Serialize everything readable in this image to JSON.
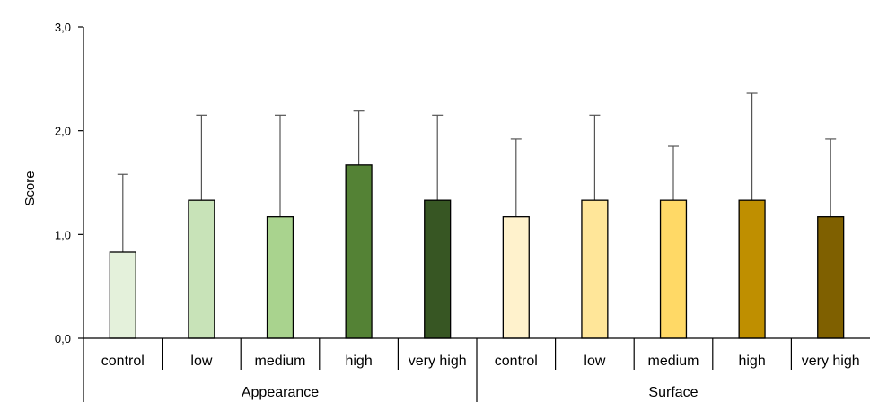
{
  "chart_data": {
    "type": "bar",
    "ylabel": "Score",
    "ylim": [
      0,
      3
    ],
    "yticks": [
      "0,0",
      "1,0",
      "2,0",
      "3,0"
    ],
    "grid": false,
    "groups": [
      {
        "name": "Appearance",
        "bars": [
          {
            "category": "control",
            "value": 0.83,
            "error": 0.75,
            "color": "#e4f1db"
          },
          {
            "category": "low",
            "value": 1.33,
            "error": 0.82,
            "color": "#c8e3b8"
          },
          {
            "category": "medium",
            "value": 1.17,
            "error": 0.98,
            "color": "#a9d38e"
          },
          {
            "category": "high",
            "value": 1.67,
            "error": 0.52,
            "color": "#548235"
          },
          {
            "category": "very high",
            "value": 1.33,
            "error": 0.82,
            "color": "#375623"
          }
        ]
      },
      {
        "name": "Surface",
        "bars": [
          {
            "category": "control",
            "value": 1.17,
            "error": 0.75,
            "color": "#fff2cc"
          },
          {
            "category": "low",
            "value": 1.33,
            "error": 0.82,
            "color": "#ffe699"
          },
          {
            "category": "medium",
            "value": 1.33,
            "error": 0.52,
            "color": "#ffd966"
          },
          {
            "category": "high",
            "value": 1.33,
            "error": 1.03,
            "color": "#bf8f00"
          },
          {
            "category": "very high",
            "value": 1.17,
            "error": 0.75,
            "color": "#7f6000"
          }
        ]
      }
    ]
  }
}
